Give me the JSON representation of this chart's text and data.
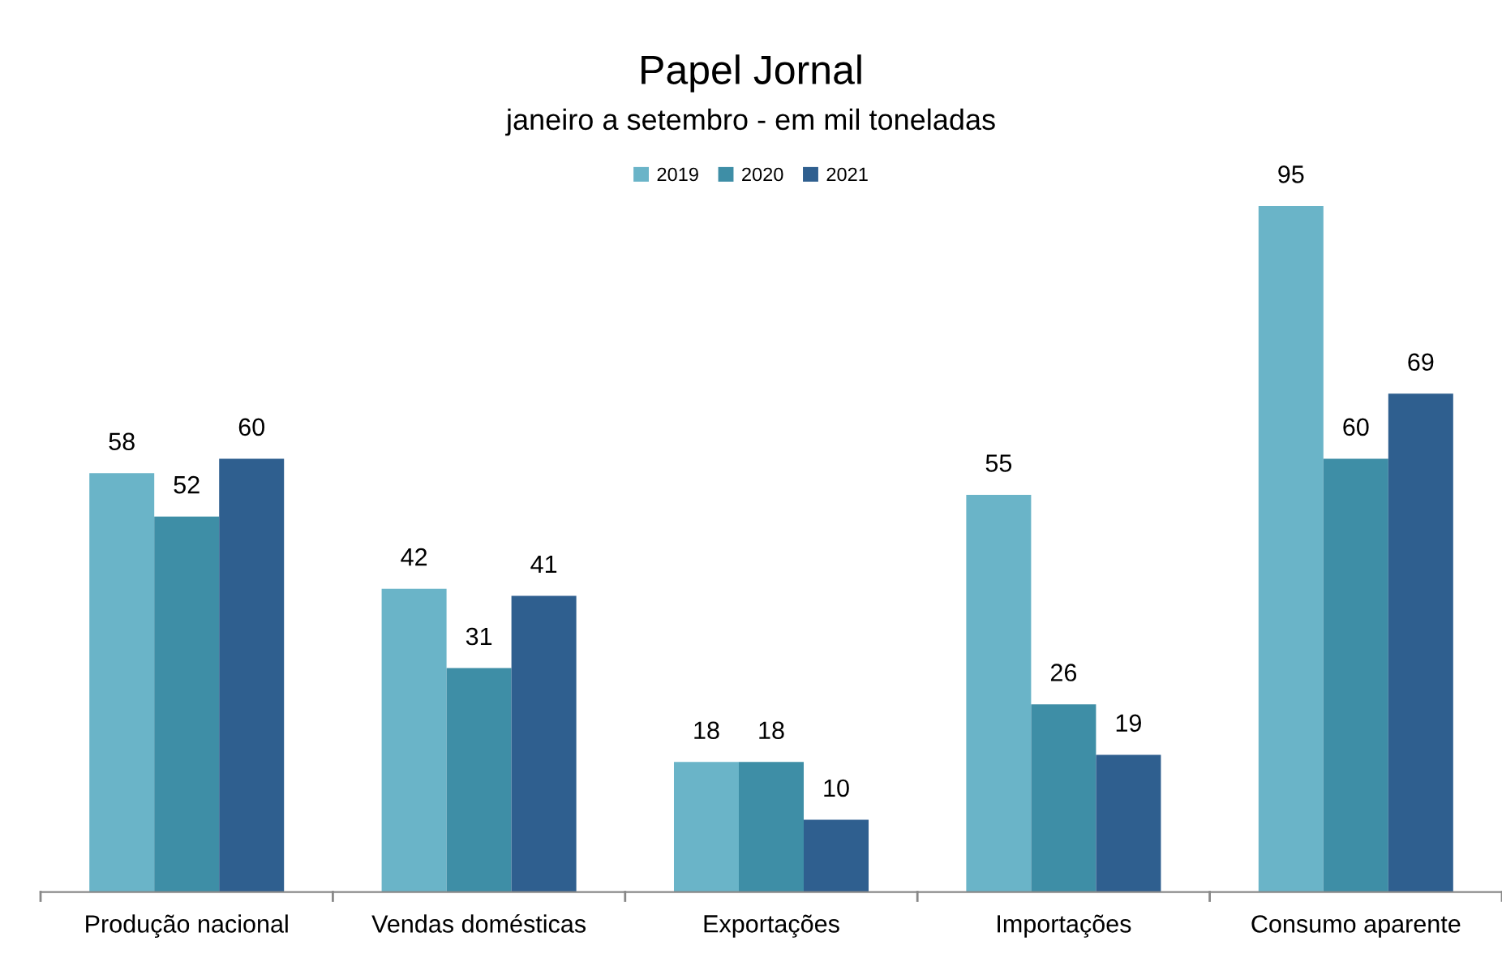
{
  "chart_data": {
    "type": "bar",
    "title": "Papel Jornal",
    "subtitle": "janeiro a setembro - em mil toneladas",
    "categories": [
      "Produção nacional",
      "Vendas domésticas",
      "Exportações",
      "Importações",
      "Consumo aparente"
    ],
    "series": [
      {
        "name": "2019",
        "color": "#6ab4c8",
        "values": [
          58,
          42,
          18,
          55,
          95
        ]
      },
      {
        "name": "2020",
        "color": "#3e8ea6",
        "values": [
          52,
          31,
          18,
          26,
          60
        ]
      },
      {
        "name": "2021",
        "color": "#2f5f8f",
        "values": [
          60,
          41,
          10,
          19,
          69
        ]
      }
    ],
    "data_labels": true,
    "legend": "top",
    "grid": false
  }
}
